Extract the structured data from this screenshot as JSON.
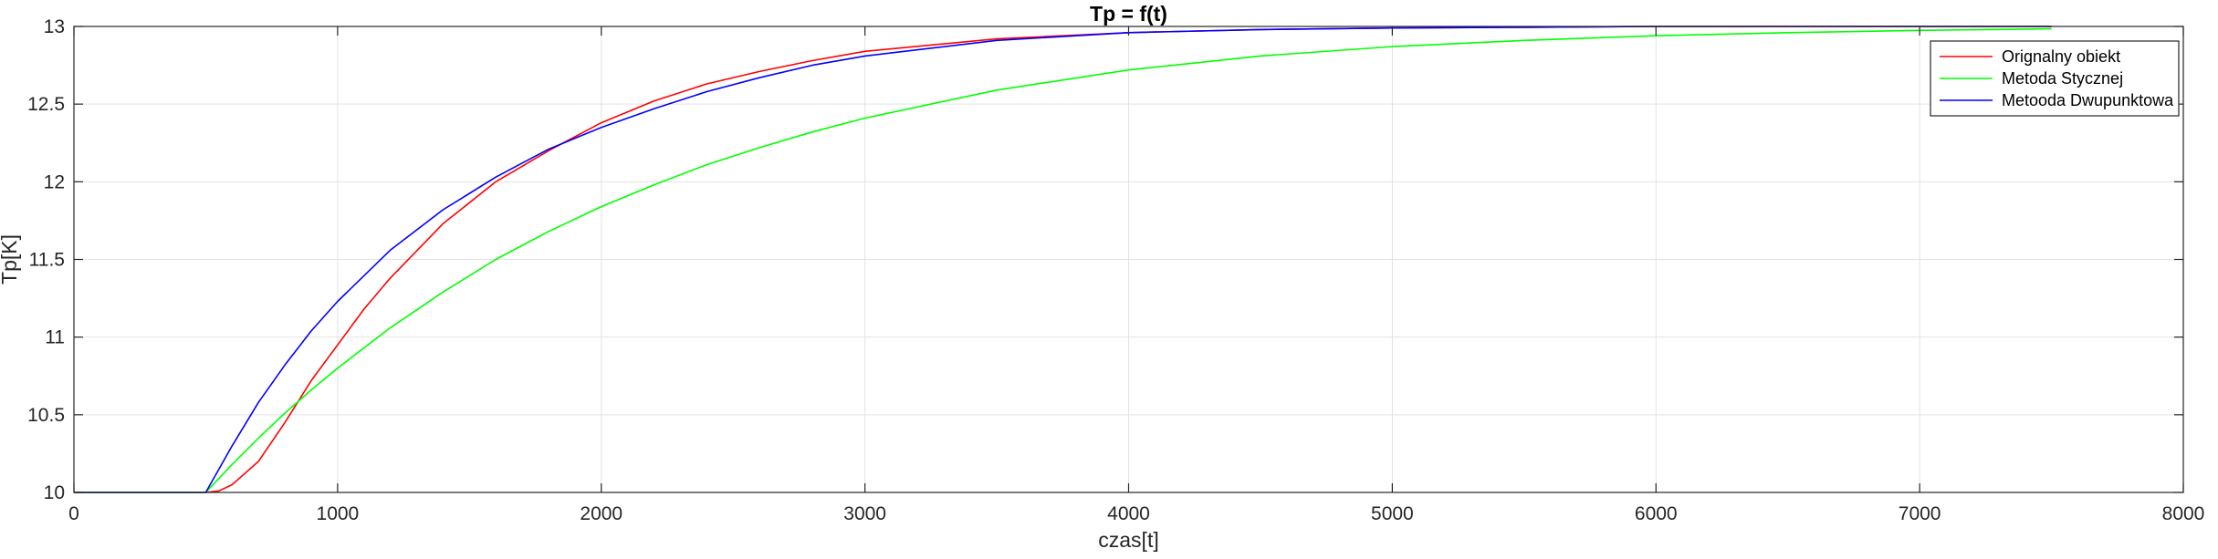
{
  "chart_data": {
    "type": "line",
    "title": "Tp = f(t)",
    "xlabel": "czas[t]",
    "ylabel": "Tp[K]",
    "xlim": [
      0,
      8000
    ],
    "ylim": [
      10,
      13
    ],
    "xticks": [
      0,
      1000,
      2000,
      3000,
      4000,
      5000,
      6000,
      7000,
      8000
    ],
    "yticks": [
      10,
      10.5,
      11,
      11.5,
      12,
      12.5,
      13
    ],
    "xtick_labels": [
      "0",
      "1000",
      "2000",
      "3000",
      "4000",
      "5000",
      "6000",
      "7000",
      "8000"
    ],
    "ytick_labels": [
      "10",
      "10.5",
      "11",
      "11.5",
      "12",
      "12.5",
      "13"
    ],
    "grid": true,
    "legend_position": "top-right",
    "series": [
      {
        "name": "Orignalny obiekt",
        "color": "#ff0000",
        "x": [
          0,
          500,
          550,
          600,
          700,
          800,
          900,
          1000,
          1100,
          1200,
          1400,
          1600,
          1800,
          2000,
          2200,
          2400,
          2600,
          2800,
          3000,
          3500,
          4000,
          4500,
          5000,
          5500,
          6000,
          6500,
          7000,
          7500
        ],
        "y": [
          10,
          10,
          10.01,
          10.05,
          10.2,
          10.45,
          10.72,
          10.95,
          11.18,
          11.38,
          11.73,
          12.0,
          12.2,
          12.38,
          12.52,
          12.63,
          12.71,
          12.78,
          12.84,
          12.92,
          12.96,
          12.98,
          12.99,
          12.995,
          13.0,
          13.0,
          13.0,
          13.0
        ]
      },
      {
        "name": "Metoda Stycznej",
        "color": "#00ff00",
        "x": [
          0,
          500,
          600,
          700,
          800,
          900,
          1000,
          1200,
          1400,
          1600,
          1800,
          2000,
          2200,
          2400,
          2600,
          2800,
          3000,
          3500,
          4000,
          4500,
          5000,
          5500,
          6000,
          6500,
          7000,
          7500
        ],
        "y": [
          10,
          10,
          10.18,
          10.35,
          10.51,
          10.66,
          10.8,
          11.06,
          11.29,
          11.5,
          11.68,
          11.84,
          11.98,
          12.11,
          12.22,
          12.32,
          12.41,
          12.59,
          12.72,
          12.81,
          12.87,
          12.91,
          12.94,
          12.96,
          12.975,
          12.985
        ]
      },
      {
        "name": "Metooda Dwupunktowa",
        "color": "#0000ff",
        "x": [
          0,
          500,
          600,
          700,
          800,
          900,
          1000,
          1200,
          1400,
          1600,
          1800,
          2000,
          2200,
          2400,
          2600,
          2800,
          3000,
          3500,
          4000,
          4500,
          5000,
          5500,
          6000,
          6500,
          7000,
          7500
        ],
        "y": [
          10,
          10,
          10.3,
          10.58,
          10.82,
          11.04,
          11.23,
          11.56,
          11.82,
          12.03,
          12.21,
          12.35,
          12.47,
          12.58,
          12.67,
          12.75,
          12.81,
          12.91,
          12.96,
          12.98,
          12.99,
          12.995,
          13.0,
          13.0,
          13.0,
          13.0
        ]
      }
    ]
  }
}
